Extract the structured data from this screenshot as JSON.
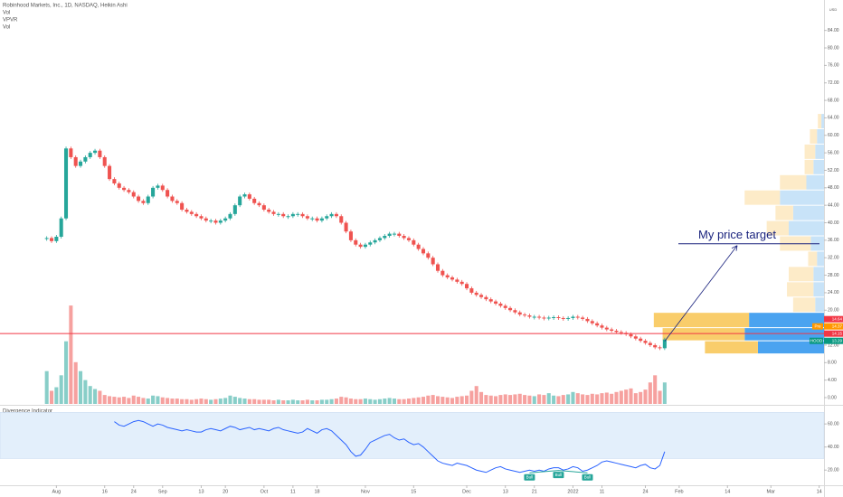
{
  "chart_data": {
    "type": "candlestick",
    "title": "Robinhood Markets, Inc., 1D, NASDAQ, Heikin Ashi",
    "indicators": [
      "Vol",
      "VPVR",
      "Vol"
    ],
    "currency": "USD",
    "up_color": "#26a69a",
    "down_color": "#ef5350",
    "close": [
      36.5,
      35.8,
      36.8,
      41,
      57,
      55,
      53,
      54,
      55,
      56,
      56.5,
      55,
      53,
      50,
      49,
      48,
      47.5,
      47,
      46,
      45,
      44.5,
      46,
      48,
      48.5,
      47.5,
      46,
      45,
      44.5,
      43,
      42.5,
      42,
      41.5,
      41,
      40.5,
      40.5,
      40,
      40.5,
      41,
      42,
      44,
      46,
      46.5,
      45.5,
      44.5,
      44,
      43,
      42.5,
      42,
      42,
      41.5,
      41.5,
      42,
      42,
      41.5,
      41,
      41,
      40.5,
      41,
      41.5,
      42,
      41.5,
      40,
      38,
      36,
      35,
      34.5,
      35,
      35.5,
      36,
      36.5,
      37,
      37.5,
      37.5,
      37,
      36.5,
      36,
      35,
      34,
      33,
      32,
      30.5,
      29,
      28,
      27.5,
      27,
      26.5,
      26,
      25,
      24,
      23.5,
      23,
      22.5,
      22,
      21.5,
      21,
      20.5,
      20,
      19.5,
      19,
      18.8,
      18.5,
      18.5,
      18.3,
      18.2,
      18.3,
      18.4,
      18.2,
      18,
      18.2,
      18.5,
      18.3,
      18,
      17.5,
      17,
      16.5,
      16,
      15.6,
      15.3,
      15,
      14.8,
      14.5,
      14,
      13.5,
      13,
      12.5,
      12,
      11.5,
      11.3,
      13.3
    ],
    "volume": [
      55,
      22,
      28,
      48,
      105,
      165,
      70,
      55,
      40,
      30,
      25,
      22,
      15,
      13,
      12,
      11,
      12,
      10,
      14,
      12,
      10,
      9,
      14,
      13,
      11,
      10,
      9,
      9,
      8,
      8,
      7,
      8,
      9,
      8,
      7,
      8,
      9,
      10,
      14,
      12,
      10,
      9,
      8,
      8,
      7,
      7,
      7,
      6,
      7,
      6,
      6,
      7,
      6,
      6,
      7,
      6,
      6,
      7,
      7,
      8,
      9,
      12,
      11,
      9,
      8,
      8,
      9,
      8,
      7,
      8,
      9,
      10,
      9,
      8,
      8,
      9,
      10,
      11,
      12,
      14,
      15,
      13,
      12,
      11,
      10,
      12,
      13,
      14,
      22,
      30,
      20,
      15,
      14,
      13,
      15,
      16,
      15,
      16,
      17,
      15,
      14,
      13,
      16,
      15,
      18,
      14,
      13,
      15,
      16,
      20,
      18,
      16,
      15,
      17,
      16,
      18,
      19,
      17,
      20,
      22,
      24,
      26,
      18,
      20,
      24,
      36,
      48,
      22,
      36
    ],
    "volume_lim": [
      0,
      250
    ],
    "xlim": [
      -2,
      161
    ],
    "xticks": [
      {
        "value": 2,
        "label": "Aug"
      },
      {
        "value": 12,
        "label": "16"
      },
      {
        "value": 18,
        "label": "24"
      },
      {
        "value": 24,
        "label": "Sep"
      },
      {
        "value": 32,
        "label": "13"
      },
      {
        "value": 37,
        "label": "20"
      },
      {
        "value": 45,
        "label": "Oct"
      },
      {
        "value": 51,
        "label": "11"
      },
      {
        "value": 56,
        "label": "18"
      },
      {
        "value": 66,
        "label": "Nov"
      },
      {
        "value": 76,
        "label": "15"
      },
      {
        "value": 87,
        "label": "Dec"
      },
      {
        "value": 95,
        "label": "13"
      },
      {
        "value": 101,
        "label": "21"
      },
      {
        "value": 109,
        "label": "2022"
      },
      {
        "value": 115,
        "label": "11"
      },
      {
        "value": 124,
        "label": "24"
      },
      {
        "value": 131,
        "label": "Feb"
      },
      {
        "value": 141,
        "label": "14"
      },
      {
        "value": 150,
        "label": "Mar"
      },
      {
        "value": 160,
        "label": "14"
      }
    ],
    "ylim": [
      0,
      86
    ],
    "yticks": [
      {
        "value": 0,
        "label": "0.00"
      },
      {
        "value": 4,
        "label": "4.00"
      },
      {
        "value": 8,
        "label": "8.00"
      },
      {
        "value": 12,
        "label": "12.00"
      },
      {
        "value": 20,
        "label": "20.00"
      },
      {
        "value": 24,
        "label": "24.00"
      },
      {
        "value": 28,
        "label": "28.00"
      },
      {
        "value": 32,
        "label": "32.00"
      },
      {
        "value": 36,
        "label": "36.00"
      },
      {
        "value": 40,
        "label": "40.00"
      },
      {
        "value": 44,
        "label": "44.00"
      },
      {
        "value": 48,
        "label": "48.00"
      },
      {
        "value": 52,
        "label": "52.00"
      },
      {
        "value": 56,
        "label": "56.00"
      },
      {
        "value": 60,
        "label": "60.00"
      },
      {
        "value": 64,
        "label": "64.00"
      },
      {
        "value": 68,
        "label": "68.00"
      },
      {
        "value": 72,
        "label": "72.00"
      },
      {
        "value": 76,
        "label": "76.00"
      },
      {
        "value": 80,
        "label": "80.00"
      },
      {
        "value": 84,
        "label": "84.00"
      }
    ],
    "price_labels": [
      {
        "value": 14.64,
        "color": "#f23645"
      },
      {
        "tag": "Pre",
        "value": 14.37,
        "color": "#ff9800"
      },
      {
        "value": 14.15,
        "color": "#f23645"
      },
      {
        "tag": "HOOD",
        "value": 13.29,
        "color": "#089981"
      }
    ],
    "target_label": "My price target",
    "target_price": 35.2,
    "volume_profile": {
      "bins": [
        10,
        13,
        16,
        19.5,
        23,
        26.5,
        30,
        33.5,
        37,
        40.5,
        44,
        47.5,
        51,
        54.5,
        58,
        61.5,
        65
      ],
      "up": [
        60,
        93,
        108,
        25,
        30,
        28,
        10,
        35,
        25,
        20,
        40,
        30,
        10,
        12,
        8,
        4
      ],
      "down": [
        75,
        90,
        85,
        10,
        12,
        12,
        8,
        15,
        40,
        35,
        50,
        20,
        12,
        10,
        8,
        3
      ],
      "lim": [
        0,
        200
      ],
      "value_area": [
        10,
        19.5
      ],
      "up_color": "#f9cd6b",
      "down_color": "#4aa3f0",
      "up_color_light": "#fdebc8",
      "down_color_light": "#c8e3f8"
    },
    "divergence": {
      "title": "Divergence Indicator",
      "color": "#2962ff",
      "band": [
        30,
        70
      ],
      "ylim": [
        10,
        75
      ],
      "yticks": [
        {
          "value": 20,
          "label": "20.00"
        },
        {
          "value": 40,
          "label": "40.00"
        },
        {
          "value": 60,
          "label": "60.00"
        }
      ],
      "values": [
        null,
        null,
        null,
        null,
        null,
        null,
        null,
        null,
        null,
        null,
        null,
        null,
        null,
        null,
        62,
        59,
        58,
        60,
        62,
        63,
        62,
        60,
        58,
        60,
        59,
        57,
        56,
        55,
        54,
        55,
        54,
        53,
        53,
        55,
        56,
        55,
        54,
        56,
        58,
        57,
        55,
        56,
        57,
        55,
        56,
        55,
        54,
        56,
        57,
        55,
        54,
        53,
        52,
        53,
        56,
        54,
        52,
        55,
        56,
        54,
        50,
        46,
        42,
        36,
        32,
        33,
        38,
        44,
        46,
        48,
        50,
        51,
        48,
        46,
        47,
        44,
        42,
        43,
        40,
        36,
        32,
        28,
        26,
        25,
        24,
        26,
        25,
        24,
        22,
        20,
        19,
        18,
        20,
        22,
        23,
        21,
        20,
        19,
        18,
        19,
        20,
        19,
        20,
        19,
        21,
        22,
        22,
        20,
        21,
        23,
        22,
        19,
        20,
        22,
        24,
        27,
        28,
        27,
        26,
        25,
        24,
        23,
        22,
        24,
        25,
        22,
        21,
        24,
        36
      ],
      "signal_label": "Bull",
      "signals": [
        100,
        106,
        112
      ]
    }
  }
}
